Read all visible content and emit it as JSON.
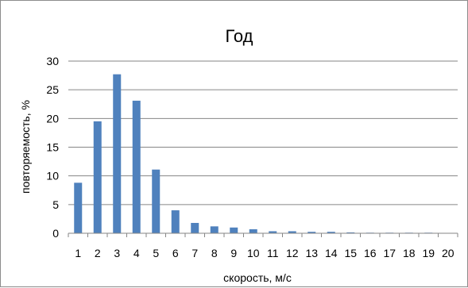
{
  "chart_data": {
    "type": "bar",
    "title": "Год",
    "xlabel": "скорость, м/с",
    "ylabel": "повторяемость, %",
    "ylim": [
      0,
      30
    ],
    "yticks": [
      "0",
      "5",
      "10",
      "15",
      "20",
      "25",
      "30"
    ],
    "grid": true,
    "legend": "none",
    "bar_color": "#4f81bd",
    "categories": [
      "1",
      "2",
      "3",
      "4",
      "5",
      "6",
      "7",
      "8",
      "9",
      "10",
      "11",
      "12",
      "13",
      "14",
      "15",
      "16",
      "17",
      "18",
      "19",
      "20"
    ],
    "values": [
      8.8,
      19.5,
      27.7,
      23.1,
      11.1,
      4.0,
      1.8,
      1.2,
      1.0,
      0.7,
      0.35,
      0.35,
      0.25,
      0.25,
      0.15,
      0.1,
      0.1,
      0.1,
      0.1,
      0
    ]
  }
}
